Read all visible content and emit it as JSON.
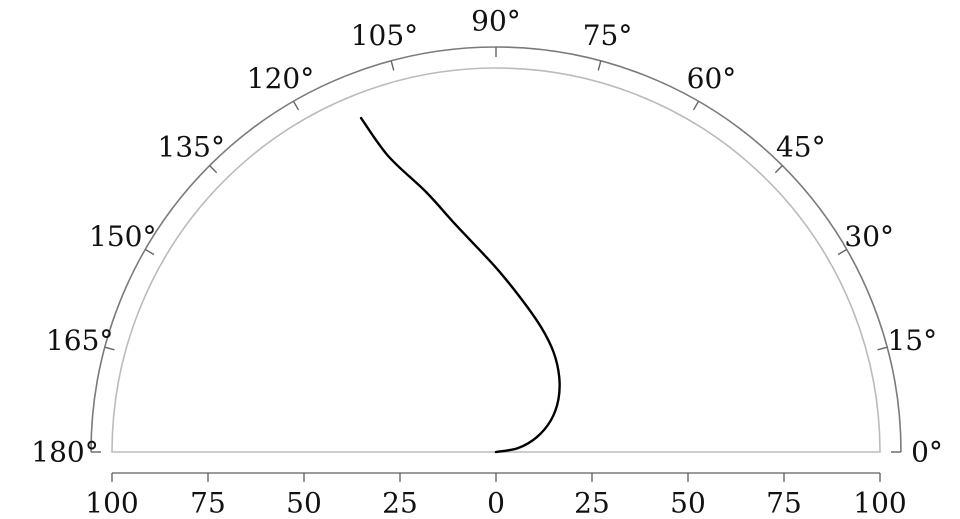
{
  "chart_data": {
    "type": "line",
    "coordinate_system": "polar",
    "angular_range_deg": [
      0,
      180
    ],
    "radial_range": [
      0,
      100
    ],
    "angle_ticks": [
      0,
      15,
      30,
      45,
      60,
      75,
      90,
      105,
      120,
      135,
      150,
      165,
      180
    ],
    "angle_tick_labels": [
      "0°",
      "15°",
      "30°",
      "45°",
      "60°",
      "75°",
      "90°",
      "105°",
      "120°",
      "135°",
      "150°",
      "165°",
      "180°"
    ],
    "radial_ticks": [
      -100,
      -75,
      -50,
      -25,
      0,
      25,
      50,
      75,
      100
    ],
    "radial_tick_labels": [
      "100",
      "75",
      "50",
      "25",
      "0",
      "25",
      "50",
      "75",
      "100"
    ],
    "series": [
      {
        "color": "#000000",
        "points": [
          {
            "theta": 0,
            "r": 0
          },
          {
            "theta": 10,
            "r": 5.8
          },
          {
            "theta": 20,
            "r": 11.3
          },
          {
            "theta": 30,
            "r": 16.5
          },
          {
            "theta": 40,
            "r": 21.2
          },
          {
            "theta": 50,
            "r": 25.6
          },
          {
            "theta": 60,
            "r": 30.0
          },
          {
            "theta": 70,
            "r": 34.5
          },
          {
            "theta": 80,
            "r": 40.0
          },
          {
            "theta": 90,
            "r": 48.0
          },
          {
            "theta": 100,
            "r": 60.0
          },
          {
            "theta": 105,
            "r": 70.0
          },
          {
            "theta": 110,
            "r": 82.0
          },
          {
            "theta": 112,
            "r": 93.8
          }
        ]
      }
    ],
    "grid": false,
    "colors": {
      "outer_frame": "#7a7a7a",
      "inner_boundary": "#bbbbbb",
      "ticks": "#666666",
      "curve": "#000000",
      "text": "#111111"
    }
  }
}
